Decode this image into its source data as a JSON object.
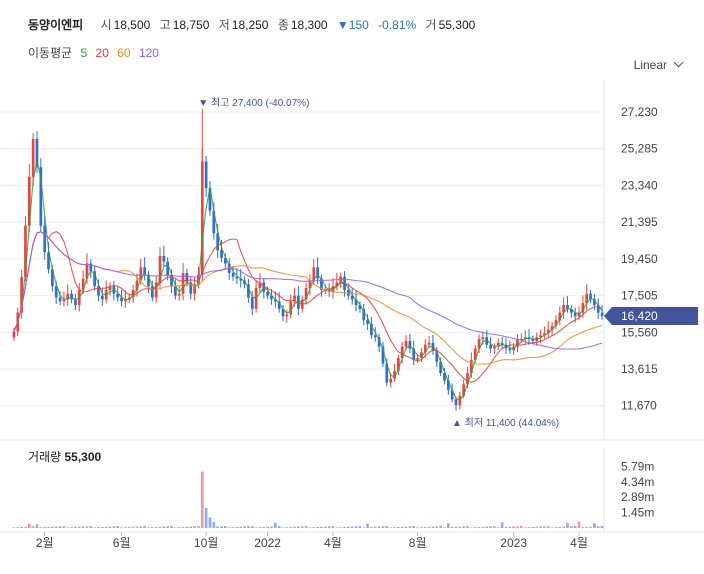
{
  "header": {
    "name": "동양이엔피",
    "open_label": "시",
    "open": "18,500",
    "high_label": "고",
    "high": "18,750",
    "low_label": "저",
    "low": "18,250",
    "close_label": "종",
    "close": "18,300",
    "change": "▼150",
    "change_pct": "-0.81%",
    "volume_label": "거",
    "volume": "55,300"
  },
  "ma_legend": {
    "title": "이동평균",
    "items": [
      {
        "label": "5",
        "color": "#2e9e3e"
      },
      {
        "label": "20",
        "color": "#e0413a"
      },
      {
        "label": "60",
        "color": "#ef8a2b"
      },
      {
        "label": "120",
        "color": "#9a5ce6"
      }
    ]
  },
  "scale_button": "Linear",
  "volume_panel": {
    "label": "거래량",
    "value": "55,300"
  },
  "colors": {
    "up": "#e8453c",
    "down": "#2f6dd1",
    "current_tag": "#44549c",
    "grid": "#eeeeee"
  },
  "chart_data": {
    "type": "candlestick",
    "price_axis": {
      "ticks": [
        "27,230",
        "25,285",
        "23,340",
        "21,395",
        "19,450",
        "17,505",
        "15,560",
        "13,615",
        "11,670"
      ],
      "ylim": [
        10700,
        28500
      ]
    },
    "current_price": {
      "value": 16420,
      "label": "16,420"
    },
    "max_annotation": {
      "text": "최고 27,400 (-40.07%)",
      "value": 27400,
      "date_index": 49
    },
    "min_annotation": {
      "text": "최저 11,400 (44.04%)",
      "value": 11400,
      "date_index": 115
    },
    "x_axis": {
      "labels": [
        {
          "text": "2월",
          "index": 8
        },
        {
          "text": "6월",
          "index": 28
        },
        {
          "text": "10월",
          "index": 50
        },
        {
          "text": "2022",
          "index": 66
        },
        {
          "text": "4월",
          "index": 83
        },
        {
          "text": "8월",
          "index": 105
        },
        {
          "text": "2023",
          "index": 130
        },
        {
          "text": "4월",
          "index": 147
        }
      ]
    },
    "closes": [
      15600,
      16600,
      18500,
      21200,
      23800,
      25800,
      24300,
      21200,
      19800,
      18900,
      18000,
      17400,
      17200,
      17300,
      17600,
      17300,
      17000,
      17800,
      18400,
      19200,
      18800,
      18000,
      17500,
      17300,
      17800,
      18000,
      17600,
      17400,
      17200,
      17300,
      17400,
      17800,
      18300,
      19000,
      18600,
      18000,
      17400,
      18200,
      19600,
      19300,
      18600,
      18000,
      17500,
      17600,
      18700,
      18200,
      17600,
      18100,
      18600,
      24600,
      23200,
      22000,
      20800,
      19900,
      19500,
      19200,
      18700,
      18500,
      18400,
      18300,
      18100,
      17400,
      16800,
      17900,
      18200,
      17700,
      17500,
      17300,
      17200,
      16800,
      16400,
      16500,
      17200,
      17500,
      16800,
      17300,
      17900,
      18300,
      19000,
      18400,
      17800,
      17800,
      17700,
      18000,
      18200,
      18500,
      17800,
      17500,
      17300,
      17000,
      16800,
      16200,
      16000,
      15400,
      15300,
      14800,
      13900,
      12900,
      13100,
      13500,
      14200,
      14800,
      15100,
      14700,
      14100,
      14200,
      14500,
      14900,
      15000,
      14600,
      14000,
      13400,
      13000,
      12500,
      12000,
      11700,
      12200,
      12800,
      13400,
      14100,
      14700,
      15200,
      15300,
      14900,
      14700,
      14800,
      15000,
      14900,
      14700,
      14600,
      14800,
      15200,
      15200,
      15300,
      15200,
      15100,
      15300,
      15400,
      15500,
      15700,
      15900,
      16200,
      16600,
      17000,
      16800,
      16600,
      16400,
      16600,
      17100,
      17600,
      17300,
      17000,
      16600,
      16420
    ],
    "volume_spikes": [
      {
        "index": 4,
        "m": 0.4
      },
      {
        "index": 6,
        "m": 0.35
      },
      {
        "index": 49,
        "m": 5.3
      },
      {
        "index": 50,
        "m": 1.9
      },
      {
        "index": 51,
        "m": 1.0
      },
      {
        "index": 52,
        "m": 0.55
      },
      {
        "index": 68,
        "m": 0.5
      },
      {
        "index": 92,
        "m": 0.4
      },
      {
        "index": 113,
        "m": 0.45
      },
      {
        "index": 127,
        "m": 0.55
      },
      {
        "index": 144,
        "m": 0.5
      },
      {
        "index": 147,
        "m": 0.6
      },
      {
        "index": 151,
        "m": 0.45
      }
    ],
    "volume_axis": {
      "ticks": [
        "5.79m",
        "4.34m",
        "2.89m",
        "1.45m"
      ],
      "values": [
        5.79,
        4.34,
        2.89,
        1.45
      ],
      "ymax": 6.2
    }
  }
}
